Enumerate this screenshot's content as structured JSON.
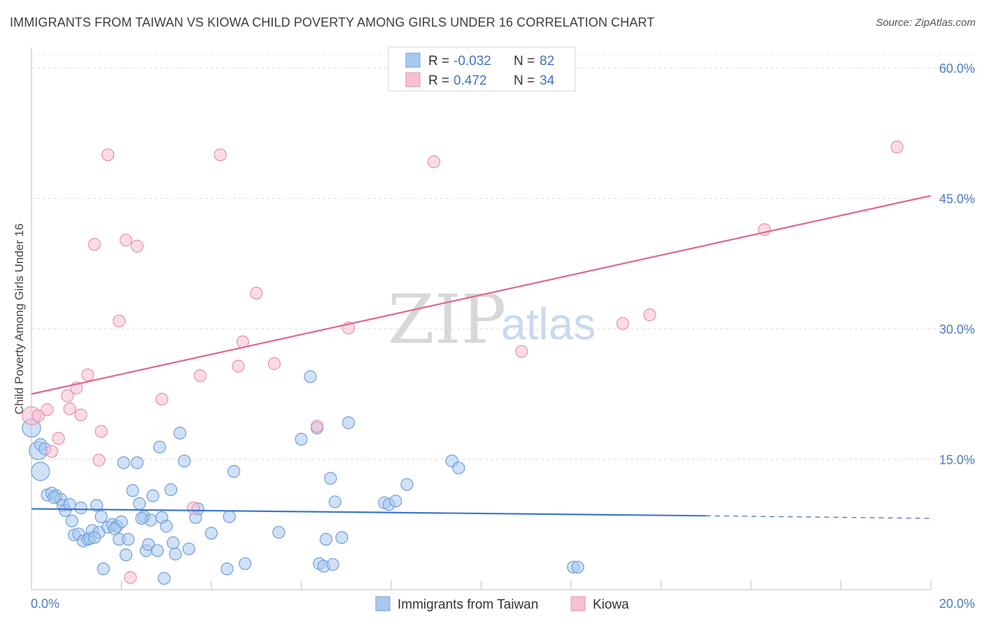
{
  "title": "IMMIGRANTS FROM TAIWAN VS KIOWA CHILD POVERTY AMONG GIRLS UNDER 16 CORRELATION CHART",
  "source": "Source: ZipAtlas.com",
  "watermark": {
    "zip": "ZIP",
    "atlas": "atlas"
  },
  "legend": {
    "rows": [
      {
        "r_label": "R = ",
        "r_value": "-0.032",
        "n_label": "N = ",
        "n_value": "82",
        "color": "#a9c8f0",
        "stroke": "#6f9fd8"
      },
      {
        "r_label": "R = ",
        "r_value": " 0.472",
        "n_label": "N = ",
        "n_value": "34",
        "color": "#f7bfd0",
        "stroke": "#e890ac"
      }
    ]
  },
  "chart_data": {
    "type": "scatter",
    "title": "IMMIGRANTS FROM TAIWAN VS KIOWA CHILD POVERTY AMONG GIRLS UNDER 16 CORRELATION CHART",
    "xlabel": "",
    "ylabel": "Child Poverty Among Girls Under 16",
    "xlim": [
      0,
      20
    ],
    "ylim": [
      0,
      60
    ],
    "x_tick_labels": [
      "0.0%",
      "20.0%"
    ],
    "y_ticks": [
      15,
      30,
      45,
      60
    ],
    "y_tick_labels": [
      "15.0%",
      "30.0%",
      "45.0%",
      "60.0%"
    ],
    "grid": true,
    "legend_placement": "bottom",
    "series": [
      {
        "name": "Immigrants from Taiwan",
        "color": "#6f9fd8",
        "fill": "#a9c8f0",
        "trend": {
          "x0": 0,
          "y0": 9.3,
          "x1": 15,
          "y1": 8.5,
          "dashed_to_x": 20,
          "dashed_y": 8.2,
          "color": "#3f77c8"
        },
        "points": [
          {
            "x": 0.0,
            "y": 18.6,
            "big": true
          },
          {
            "x": 0.15,
            "y": 16.0,
            "big": true
          },
          {
            "x": 0.2,
            "y": 16.7
          },
          {
            "x": 0.2,
            "y": 13.6,
            "big": true
          },
          {
            "x": 0.35,
            "y": 10.9
          },
          {
            "x": 0.45,
            "y": 11.1
          },
          {
            "x": 0.55,
            "y": 10.8
          },
          {
            "x": 0.65,
            "y": 10.4
          },
          {
            "x": 0.7,
            "y": 9.7
          },
          {
            "x": 0.75,
            "y": 9.1
          },
          {
            "x": 0.85,
            "y": 9.8
          },
          {
            "x": 0.9,
            "y": 7.9
          },
          {
            "x": 0.95,
            "y": 6.3
          },
          {
            "x": 1.05,
            "y": 6.4
          },
          {
            "x": 1.1,
            "y": 9.4
          },
          {
            "x": 1.15,
            "y": 5.6
          },
          {
            "x": 1.25,
            "y": 5.8
          },
          {
            "x": 1.3,
            "y": 5.9
          },
          {
            "x": 1.35,
            "y": 6.8
          },
          {
            "x": 1.45,
            "y": 9.7
          },
          {
            "x": 1.5,
            "y": 6.6
          },
          {
            "x": 1.55,
            "y": 8.4
          },
          {
            "x": 1.6,
            "y": 2.4
          },
          {
            "x": 1.7,
            "y": 7.2
          },
          {
            "x": 1.8,
            "y": 7.5
          },
          {
            "x": 1.9,
            "y": 7.3
          },
          {
            "x": 1.95,
            "y": 5.8
          },
          {
            "x": 2.0,
            "y": 7.8
          },
          {
            "x": 2.05,
            "y": 14.6
          },
          {
            "x": 2.1,
            "y": 4.0
          },
          {
            "x": 2.15,
            "y": 5.8
          },
          {
            "x": 2.25,
            "y": 11.4
          },
          {
            "x": 2.35,
            "y": 14.6
          },
          {
            "x": 2.4,
            "y": 9.9
          },
          {
            "x": 2.5,
            "y": 8.4
          },
          {
            "x": 2.55,
            "y": 4.5
          },
          {
            "x": 2.6,
            "y": 5.2
          },
          {
            "x": 2.65,
            "y": 8.0
          },
          {
            "x": 2.7,
            "y": 10.8
          },
          {
            "x": 2.8,
            "y": 4.5
          },
          {
            "x": 2.85,
            "y": 16.4
          },
          {
            "x": 2.9,
            "y": 8.3
          },
          {
            "x": 2.95,
            "y": 1.3
          },
          {
            "x": 3.0,
            "y": 7.3
          },
          {
            "x": 3.1,
            "y": 11.5
          },
          {
            "x": 3.15,
            "y": 5.4
          },
          {
            "x": 3.2,
            "y": 4.1
          },
          {
            "x": 3.3,
            "y": 18.0
          },
          {
            "x": 3.4,
            "y": 14.8
          },
          {
            "x": 3.5,
            "y": 4.7
          },
          {
            "x": 3.65,
            "y": 8.3
          },
          {
            "x": 3.7,
            "y": 9.3
          },
          {
            "x": 4.0,
            "y": 6.5
          },
          {
            "x": 4.35,
            "y": 2.4
          },
          {
            "x": 4.4,
            "y": 8.4
          },
          {
            "x": 4.5,
            "y": 13.6
          },
          {
            "x": 4.75,
            "y": 3.0
          },
          {
            "x": 5.5,
            "y": 6.6
          },
          {
            "x": 6.0,
            "y": 17.3
          },
          {
            "x": 6.2,
            "y": 24.5
          },
          {
            "x": 6.35,
            "y": 18.6
          },
          {
            "x": 6.4,
            "y": 3.0
          },
          {
            "x": 6.5,
            "y": 2.7
          },
          {
            "x": 6.55,
            "y": 5.8
          },
          {
            "x": 6.7,
            "y": 2.9
          },
          {
            "x": 6.65,
            "y": 12.8
          },
          {
            "x": 6.75,
            "y": 10.1
          },
          {
            "x": 6.9,
            "y": 6.0
          },
          {
            "x": 7.05,
            "y": 19.2
          },
          {
            "x": 7.85,
            "y": 10.0
          },
          {
            "x": 7.95,
            "y": 9.8
          },
          {
            "x": 8.1,
            "y": 10.2
          },
          {
            "x": 8.35,
            "y": 12.1
          },
          {
            "x": 9.35,
            "y": 14.8
          },
          {
            "x": 9.5,
            "y": 14.0
          },
          {
            "x": 12.05,
            "y": 2.6
          },
          {
            "x": 12.15,
            "y": 2.6
          },
          {
            "x": 0.3,
            "y": 16.2
          },
          {
            "x": 0.5,
            "y": 10.6
          },
          {
            "x": 1.4,
            "y": 6.0
          },
          {
            "x": 1.85,
            "y": 7.0
          },
          {
            "x": 2.45,
            "y": 8.2
          }
        ]
      },
      {
        "name": "Kiowa",
        "color": "#e890ac",
        "fill": "#f7bfd0",
        "trend": {
          "x0": 0,
          "y0": 22.5,
          "x1": 20,
          "y1": 45.3,
          "color": "#e0668f"
        },
        "points": [
          {
            "x": 0.0,
            "y": 20.0,
            "big": true
          },
          {
            "x": 0.15,
            "y": 20.0
          },
          {
            "x": 0.35,
            "y": 20.7
          },
          {
            "x": 0.45,
            "y": 15.9
          },
          {
            "x": 0.6,
            "y": 17.4
          },
          {
            "x": 0.8,
            "y": 22.3
          },
          {
            "x": 0.85,
            "y": 20.8
          },
          {
            "x": 1.0,
            "y": 23.2
          },
          {
            "x": 1.1,
            "y": 20.1
          },
          {
            "x": 1.25,
            "y": 24.7
          },
          {
            "x": 1.4,
            "y": 39.7
          },
          {
            "x": 1.5,
            "y": 14.9
          },
          {
            "x": 1.55,
            "y": 18.2
          },
          {
            "x": 1.7,
            "y": 50.0
          },
          {
            "x": 1.95,
            "y": 30.9
          },
          {
            "x": 2.1,
            "y": 40.2
          },
          {
            "x": 2.2,
            "y": 1.4
          },
          {
            "x": 2.35,
            "y": 39.5
          },
          {
            "x": 2.9,
            "y": 21.9
          },
          {
            "x": 3.6,
            "y": 9.4
          },
          {
            "x": 3.75,
            "y": 24.6
          },
          {
            "x": 4.2,
            "y": 50.0
          },
          {
            "x": 4.6,
            "y": 25.7
          },
          {
            "x": 4.7,
            "y": 28.5
          },
          {
            "x": 5.0,
            "y": 34.1
          },
          {
            "x": 5.4,
            "y": 26.0
          },
          {
            "x": 6.35,
            "y": 18.8
          },
          {
            "x": 7.05,
            "y": 30.1
          },
          {
            "x": 8.95,
            "y": 49.2
          },
          {
            "x": 10.9,
            "y": 27.4
          },
          {
            "x": 13.15,
            "y": 30.6
          },
          {
            "x": 13.75,
            "y": 31.6
          },
          {
            "x": 16.3,
            "y": 41.4
          },
          {
            "x": 19.25,
            "y": 50.9
          }
        ]
      }
    ]
  }
}
